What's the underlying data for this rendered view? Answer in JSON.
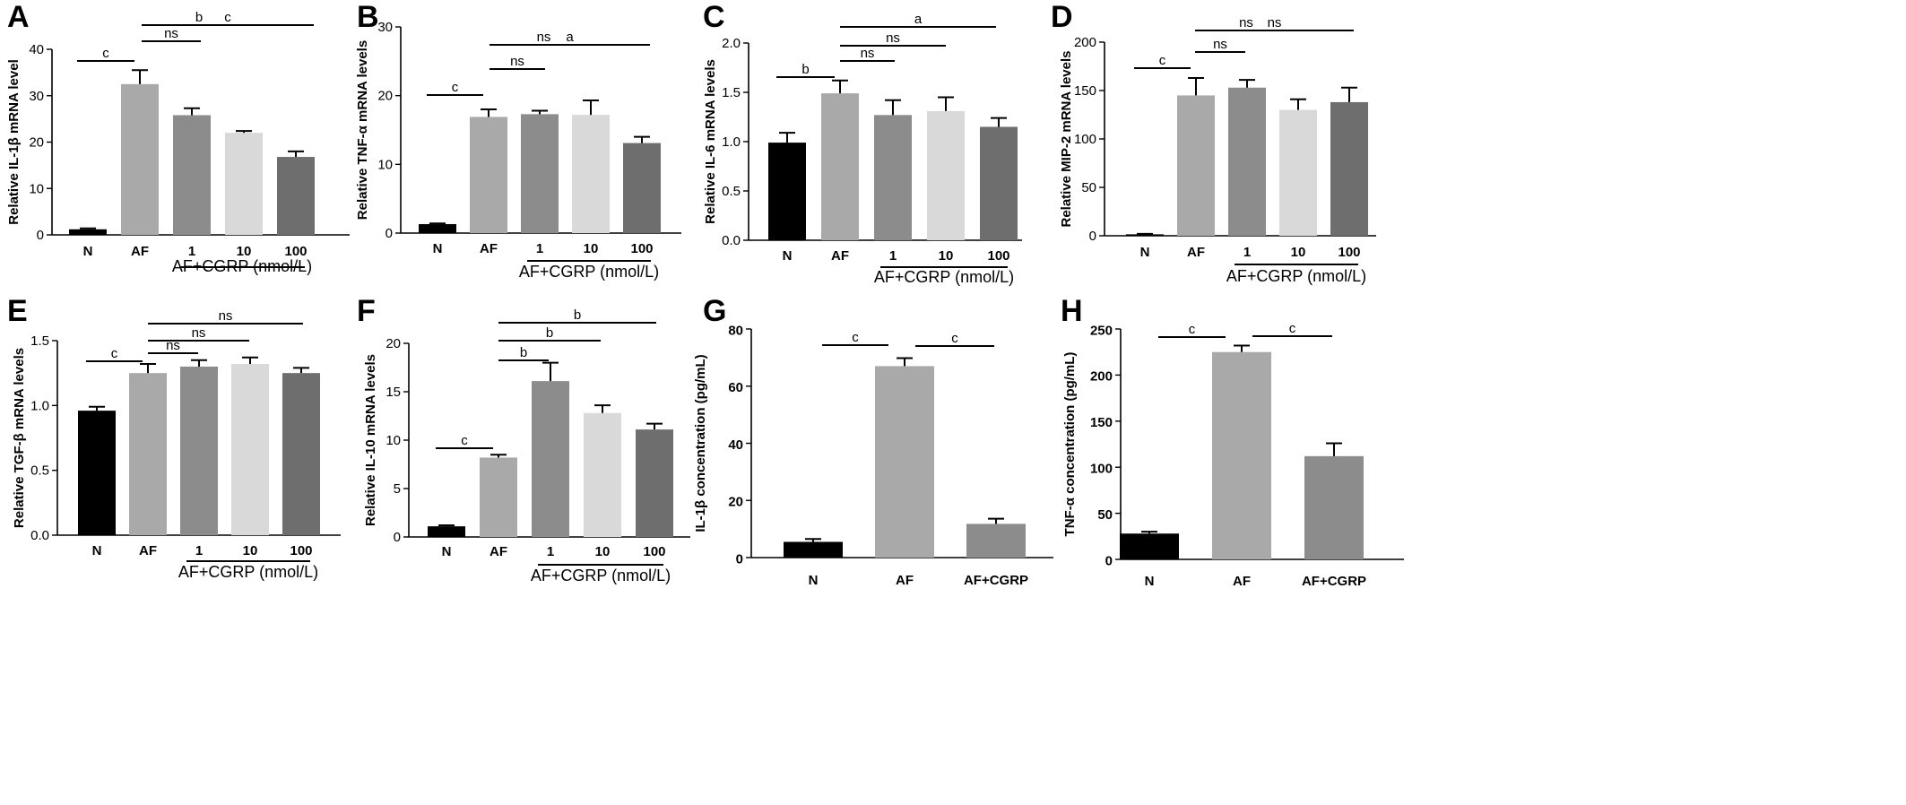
{
  "chart_data": [
    {
      "id": "A",
      "type": "bar",
      "categories": [
        "N",
        "AF",
        "1",
        "10",
        "100"
      ],
      "values": [
        1.2,
        32.5,
        25.8,
        22.0,
        16.8
      ],
      "errors": [
        0.2,
        3.0,
        1.5,
        0.4,
        1.2
      ],
      "colors": [
        "#000000",
        "#a9a9a9",
        "#8c8c8c",
        "#d9d9d9",
        "#6e6e6e"
      ],
      "ylabel": "Relative IL-1β mRNA level",
      "ylim": [
        0,
        40
      ],
      "yticks": [
        "0",
        "10",
        "20",
        "30",
        "40"
      ],
      "group_label": "AF+CGRP (nmol/L)",
      "group_range": [
        2,
        4
      ],
      "significance": [
        {
          "from": 0,
          "to": 1,
          "label": "c"
        },
        {
          "from": 1,
          "to": 2,
          "label": "ns"
        },
        {
          "from": 1,
          "to": 3,
          "label": "b"
        },
        {
          "from": 1,
          "to": 4,
          "label": "c"
        }
      ]
    },
    {
      "id": "B",
      "type": "bar",
      "categories": [
        "N",
        "AF",
        "1",
        "10",
        "100"
      ],
      "values": [
        1.3,
        16.9,
        17.3,
        17.2,
        13.1
      ],
      "errors": [
        0.1,
        1.1,
        0.5,
        2.1,
        0.9
      ],
      "colors": [
        "#000000",
        "#a9a9a9",
        "#8c8c8c",
        "#d9d9d9",
        "#6e6e6e"
      ],
      "ylabel": "Relative TNF-α mRNA levels",
      "ylim": [
        0,
        30
      ],
      "yticks": [
        "0",
        "10",
        "20",
        "30"
      ],
      "group_label": "AF+CGRP (nmol/L)",
      "group_range": [
        2,
        4
      ],
      "significance": [
        {
          "from": 0,
          "to": 1,
          "label": "c"
        },
        {
          "from": 1,
          "to": 2,
          "label": "ns"
        },
        {
          "from": 1,
          "to": 3,
          "label": "ns"
        },
        {
          "from": 1,
          "to": 4,
          "label": "a"
        }
      ]
    },
    {
      "id": "C",
      "type": "bar",
      "categories": [
        "N",
        "AF",
        "1",
        "10",
        "100"
      ],
      "values": [
        0.99,
        1.49,
        1.27,
        1.31,
        1.15
      ],
      "errors": [
        0.1,
        0.13,
        0.15,
        0.14,
        0.09
      ],
      "colors": [
        "#000000",
        "#a9a9a9",
        "#8c8c8c",
        "#d9d9d9",
        "#6e6e6e"
      ],
      "ylabel": "Relative IL-6 mRNA levels",
      "ylim": [
        0,
        2.0
      ],
      "yticks": [
        "0.0",
        "0.5",
        "1.0",
        "1.5",
        "2.0"
      ],
      "group_label": "AF+CGRP (nmol/L)",
      "group_range": [
        2,
        4
      ],
      "significance": [
        {
          "from": 0,
          "to": 1,
          "label": "b"
        },
        {
          "from": 1,
          "to": 2,
          "label": "ns"
        },
        {
          "from": 1,
          "to": 3,
          "label": "ns"
        },
        {
          "from": 1,
          "to": 4,
          "label": "a"
        }
      ]
    },
    {
      "id": "D",
      "type": "bar",
      "categories": [
        "N",
        "AF",
        "1",
        "10",
        "100"
      ],
      "values": [
        1.5,
        145,
        153,
        130,
        138
      ],
      "errors": [
        0.5,
        18,
        8,
        11,
        15
      ],
      "colors": [
        "#000000",
        "#a9a9a9",
        "#8c8c8c",
        "#d9d9d9",
        "#6e6e6e"
      ],
      "ylabel": "Relative MIP-2 mRNA levels",
      "ylim": [
        0,
        200
      ],
      "yticks": [
        "0",
        "50",
        "100",
        "150",
        "200"
      ],
      "group_label": "AF+CGRP (nmol/L)",
      "group_range": [
        2,
        4
      ],
      "significance": [
        {
          "from": 0,
          "to": 1,
          "label": "c"
        },
        {
          "from": 1,
          "to": 2,
          "label": "ns"
        },
        {
          "from": 1,
          "to": 3,
          "label": "ns"
        },
        {
          "from": 1,
          "to": 4,
          "label": "ns"
        }
      ]
    },
    {
      "id": "E",
      "type": "bar",
      "categories": [
        "N",
        "AF",
        "1",
        "10",
        "100"
      ],
      "values": [
        0.96,
        1.25,
        1.3,
        1.32,
        1.25
      ],
      "errors": [
        0.03,
        0.07,
        0.05,
        0.05,
        0.04
      ],
      "colors": [
        "#000000",
        "#a9a9a9",
        "#8c8c8c",
        "#d9d9d9",
        "#6e6e6e"
      ],
      "ylabel": "Relative TGF-β mRNA levels",
      "ylim": [
        0,
        1.5
      ],
      "yticks": [
        "0.0",
        "0.5",
        "1.0",
        "1.5"
      ],
      "group_label": "AF+CGRP (nmol/L)",
      "group_range": [
        2,
        4
      ],
      "significance": [
        {
          "from": 0,
          "to": 1,
          "label": "c"
        },
        {
          "from": 1,
          "to": 2,
          "label": "ns"
        },
        {
          "from": 1,
          "to": 3,
          "label": "ns"
        },
        {
          "from": 1,
          "to": 4,
          "label": "ns"
        }
      ]
    },
    {
      "id": "F",
      "type": "bar",
      "categories": [
        "N",
        "AF",
        "1",
        "10",
        "100"
      ],
      "values": [
        1.1,
        8.2,
        16.1,
        12.8,
        11.1
      ],
      "errors": [
        0.1,
        0.3,
        1.9,
        0.8,
        0.6
      ],
      "colors": [
        "#000000",
        "#a9a9a9",
        "#8c8c8c",
        "#d9d9d9",
        "#6e6e6e"
      ],
      "ylabel": "Relative IL-10 mRNA levels",
      "ylim": [
        0,
        20
      ],
      "yticks": [
        "0",
        "5",
        "10",
        "15",
        "20"
      ],
      "group_label": "AF+CGRP (nmol/L)",
      "group_range": [
        2,
        4
      ],
      "significance": [
        {
          "from": 0,
          "to": 1,
          "label": "c"
        },
        {
          "from": 1,
          "to": 2,
          "label": "b"
        },
        {
          "from": 1,
          "to": 3,
          "label": "b"
        },
        {
          "from": 1,
          "to": 4,
          "label": "b"
        }
      ]
    },
    {
      "id": "G",
      "type": "bar",
      "categories": [
        "N",
        "AF",
        "AF+CGRP"
      ],
      "values": [
        5.5,
        67,
        11.8
      ],
      "errors": [
        1.0,
        2.8,
        1.8
      ],
      "colors": [
        "#000000",
        "#a9a9a9",
        "#8c8c8c"
      ],
      "ylabel": "IL-1β concentration (pg/mL)",
      "ylim": [
        0,
        80
      ],
      "yticks": [
        "0",
        "20",
        "40",
        "60",
        "80"
      ],
      "group_label": "",
      "group_range": null,
      "significance": [
        {
          "from": 0,
          "to": 1,
          "label": "c"
        },
        {
          "from": 1,
          "to": 2,
          "label": "c"
        }
      ]
    },
    {
      "id": "H",
      "type": "bar",
      "categories": [
        "N",
        "AF",
        "AF+CGRP"
      ],
      "values": [
        28,
        225,
        112
      ],
      "errors": [
        2,
        7,
        14
      ],
      "colors": [
        "#000000",
        "#a9a9a9",
        "#8c8c8c"
      ],
      "ylabel": "TNF-α concentration (pg/mL)",
      "ylim": [
        0,
        250
      ],
      "yticks": [
        "0",
        "50",
        "100",
        "150",
        "200",
        "250"
      ],
      "group_label": "",
      "group_range": null,
      "significance": [
        {
          "from": 0,
          "to": 1,
          "label": "c"
        },
        {
          "from": 1,
          "to": 2,
          "label": "c"
        }
      ]
    }
  ]
}
